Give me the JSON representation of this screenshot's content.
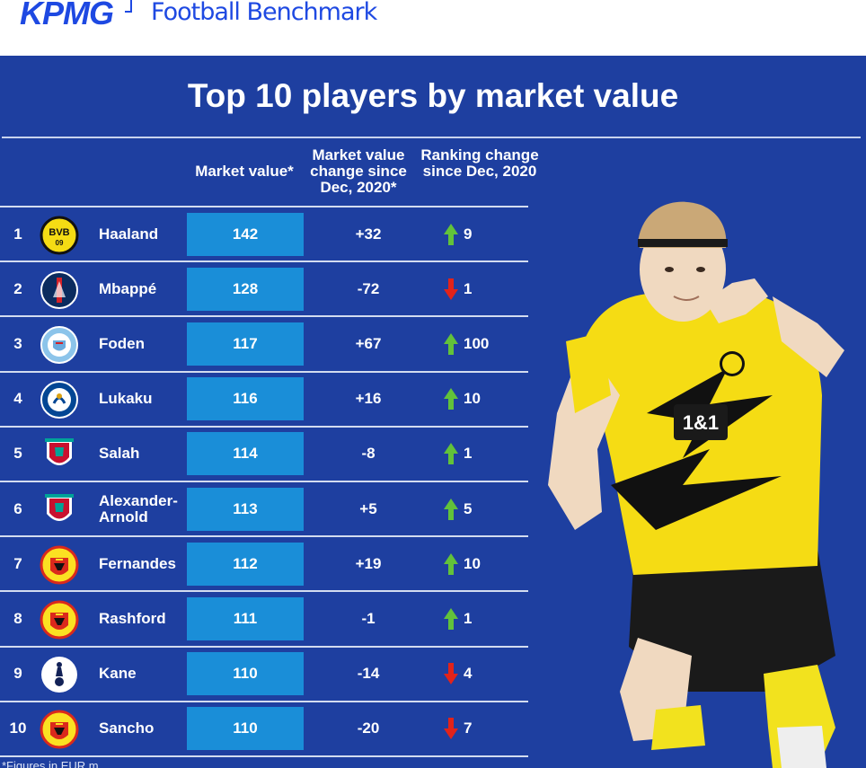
{
  "header": {
    "logo_text": "KPMG",
    "brand": "Football Benchmark"
  },
  "chart_data": {
    "type": "table",
    "title": "Top 10 players by market value",
    "columns": [
      "Market value*",
      "Market value change since Dec, 2020*",
      "Ranking change since Dec, 2020"
    ],
    "footnote": "*Figures in EUR m",
    "rows": [
      {
        "rank": "1",
        "player": "Haaland",
        "club": "Borussia Dortmund",
        "market_value": 142,
        "change": "+32",
        "rank_change": 9,
        "direction": "up"
      },
      {
        "rank": "2",
        "player": "Mbappé",
        "club": "Paris Saint-Germain",
        "market_value": 128,
        "change": "-72",
        "rank_change": 1,
        "direction": "down"
      },
      {
        "rank": "3",
        "player": "Foden",
        "club": "Manchester City",
        "market_value": 117,
        "change": "+67",
        "rank_change": 100,
        "direction": "up"
      },
      {
        "rank": "4",
        "player": "Lukaku",
        "club": "Chelsea",
        "market_value": 116,
        "change": "+16",
        "rank_change": 10,
        "direction": "up"
      },
      {
        "rank": "5",
        "player": "Salah",
        "club": "Liverpool",
        "market_value": 114,
        "change": "-8",
        "rank_change": 1,
        "direction": "up"
      },
      {
        "rank": "6",
        "player": "Alexander-Arnold",
        "club": "Liverpool",
        "market_value": 113,
        "change": "+5",
        "rank_change": 5,
        "direction": "up"
      },
      {
        "rank": "7",
        "player": "Fernandes",
        "club": "Manchester United",
        "market_value": 112,
        "change": "+19",
        "rank_change": 10,
        "direction": "up"
      },
      {
        "rank": "8",
        "player": "Rashford",
        "club": "Manchester United",
        "market_value": 111,
        "change": "-1",
        "rank_change": 1,
        "direction": "up"
      },
      {
        "rank": "9",
        "player": "Kane",
        "club": "Tottenham Hotspur",
        "market_value": 110,
        "change": "-14",
        "rank_change": 4,
        "direction": "down"
      },
      {
        "rank": "10",
        "player": "Sancho",
        "club": "Manchester United",
        "market_value": 110,
        "change": "-20",
        "rank_change": 7,
        "direction": "down"
      }
    ]
  },
  "colors": {
    "background": "#1e3fa0",
    "value_box": "#1a8ed8",
    "up_arrow": "#62c23a",
    "down_arrow": "#e2231a",
    "kpmg_blue": "#1e49e2"
  }
}
